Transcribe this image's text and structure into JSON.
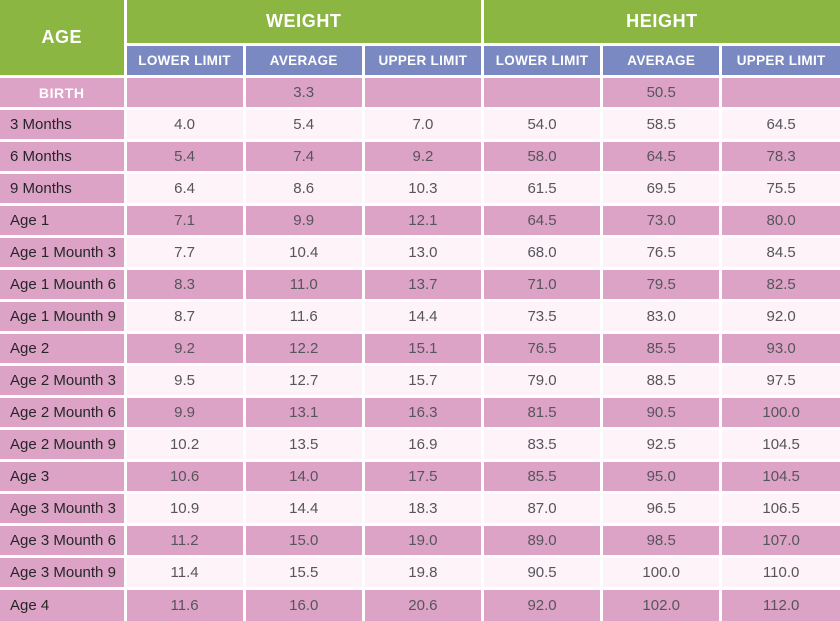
{
  "colors": {
    "green": "#8cb642",
    "purple": "#7a89c2",
    "pink": "#dda3c6",
    "light": "#fdf3f9",
    "label-text": "#262626",
    "value-text": "#55555a"
  },
  "chart_data": {
    "type": "table",
    "age_header": "AGE",
    "group_headers": [
      "WEIGHT",
      "HEIGHT"
    ],
    "sub_headers": [
      "LOWER LIMIT",
      "AVERAGE",
      "UPPER LIMIT"
    ],
    "rows": [
      {
        "age": "BIRTH",
        "style": "highlight",
        "weight": [
          "",
          "3.3",
          ""
        ],
        "height": [
          "",
          "50.5",
          ""
        ]
      },
      {
        "age": "3 Months",
        "weight": [
          "4.0",
          "5.4",
          "7.0"
        ],
        "height": [
          "54.0",
          "58.5",
          "64.5"
        ]
      },
      {
        "age": "6 Months",
        "weight": [
          "5.4",
          "7.4",
          "9.2"
        ],
        "height": [
          "58.0",
          "64.5",
          "78.3"
        ]
      },
      {
        "age": "9 Months",
        "weight": [
          "6.4",
          "8.6",
          "10.3"
        ],
        "height": [
          "61.5",
          "69.5",
          "75.5"
        ]
      },
      {
        "age": "Age 1",
        "weight": [
          "7.1",
          "9.9",
          "12.1"
        ],
        "height": [
          "64.5",
          "73.0",
          "80.0"
        ]
      },
      {
        "age": "Age 1 Mounth 3",
        "weight": [
          "7.7",
          "10.4",
          "13.0"
        ],
        "height": [
          "68.0",
          "76.5",
          "84.5"
        ]
      },
      {
        "age": "Age 1 Mounth 6",
        "weight": [
          "8.3",
          "11.0",
          "13.7"
        ],
        "height": [
          "71.0",
          "79.5",
          "82.5"
        ]
      },
      {
        "age": "Age 1 Mounth 9",
        "weight": [
          "8.7",
          "11.6",
          "14.4"
        ],
        "height": [
          "73.5",
          "83.0",
          "92.0"
        ]
      },
      {
        "age": "Age 2",
        "weight": [
          "9.2",
          "12.2",
          "15.1"
        ],
        "height": [
          "76.5",
          "85.5",
          "93.0"
        ]
      },
      {
        "age": "Age 2 Mounth 3",
        "weight": [
          "9.5",
          "12.7",
          "15.7"
        ],
        "height": [
          "79.0",
          "88.5",
          "97.5"
        ]
      },
      {
        "age": "Age 2 Mounth 6",
        "weight": [
          "9.9",
          "13.1",
          "16.3"
        ],
        "height": [
          "81.5",
          "90.5",
          "100.0"
        ]
      },
      {
        "age": "Age 2 Mounth 9",
        "weight": [
          "10.2",
          "13.5",
          "16.9"
        ],
        "height": [
          "83.5",
          "92.5",
          "104.5"
        ]
      },
      {
        "age": "Age 3",
        "weight": [
          "10.6",
          "14.0",
          "17.5"
        ],
        "height": [
          "85.5",
          "95.0",
          "104.5"
        ]
      },
      {
        "age": "Age 3 Mounth 3",
        "weight": [
          "10.9",
          "14.4",
          "18.3"
        ],
        "height": [
          "87.0",
          "96.5",
          "106.5"
        ]
      },
      {
        "age": "Age 3 Mounth 6",
        "weight": [
          "11.2",
          "15.0",
          "19.0"
        ],
        "height": [
          "89.0",
          "98.5",
          "107.0"
        ]
      },
      {
        "age": "Age 3 Mounth 9",
        "weight": [
          "11.4",
          "15.5",
          "19.8"
        ],
        "height": [
          "90.5",
          "100.0",
          "110.0"
        ]
      },
      {
        "age": "Age 4",
        "weight": [
          "11.6",
          "16.0",
          "20.6"
        ],
        "height": [
          "92.0",
          "102.0",
          "112.0"
        ]
      }
    ]
  }
}
